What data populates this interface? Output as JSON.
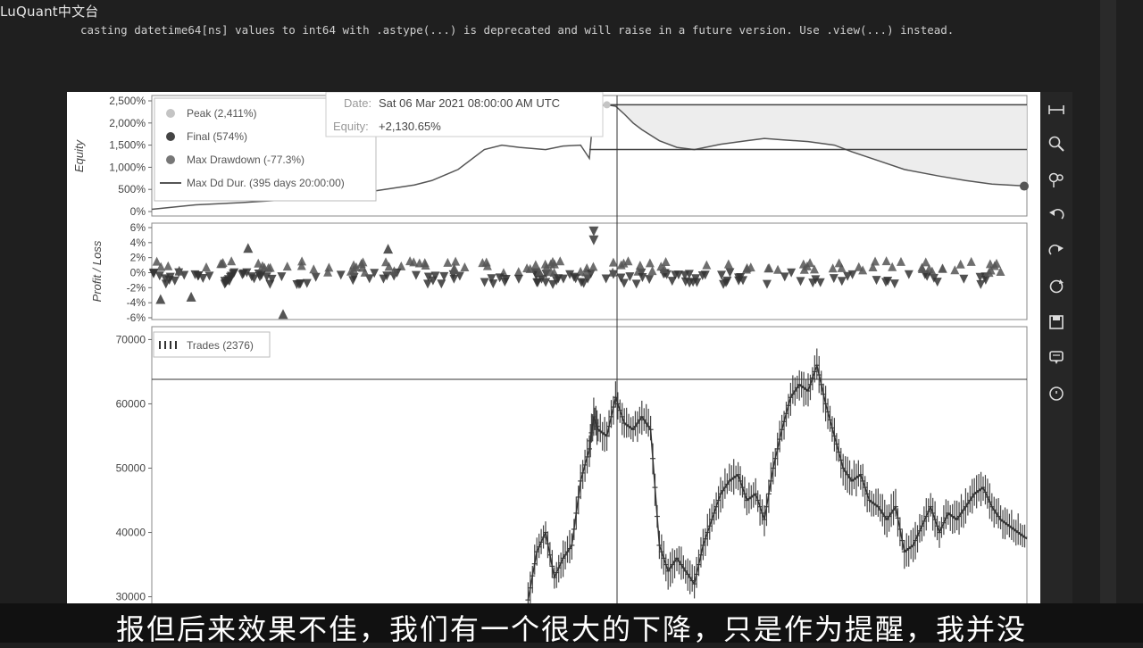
{
  "brand": "LuQuant中文台",
  "warning": "casting datetime64[ns] values to int64 with .astype(...) is deprecated and will raise in a future version. Use .view(...) instead.",
  "subtitle": "报但后来效果不佳，我们有一个很大的下降，只是作为提醒，我并没",
  "tooltip": {
    "date_label": "Date:",
    "date_value": "Sat 06 Mar 2021 08:00:00 AM UTC",
    "equity_label": "Equity:",
    "equity_value": "+2,130.65%"
  },
  "toolbar_icons": [
    "pan-icon",
    "box-zoom-icon",
    "wheel-zoom-icon",
    "undo-icon",
    "redo-icon",
    "reset-icon",
    "save-icon",
    "hover-icon",
    "crosshair-icon"
  ],
  "chart_data": [
    {
      "type": "line",
      "ylabel": "Equity",
      "ylim": [
        0,
        2500
      ],
      "yticks": [
        "0%",
        "500%",
        "1,000%",
        "1,500%",
        "2,000%",
        "2,500%"
      ],
      "ytick_values": [
        0,
        500,
        1000,
        1500,
        2000,
        2500
      ],
      "legend_position": "top-left",
      "legend": [
        {
          "name": "Peak (2,411%)",
          "marker": "circle",
          "color": "#c4c4c4"
        },
        {
          "name": "Final (574%)",
          "marker": "circle",
          "color": "#444444"
        },
        {
          "name": "Max Drawdown (-77.3%)",
          "marker": "circle",
          "color": "#777777"
        },
        {
          "name": "Max Dd Dur. (395 days 20:00:00)",
          "marker": "line",
          "color": "#555555"
        }
      ],
      "x": [
        0,
        0.05,
        0.1,
        0.15,
        0.2,
        0.25,
        0.3,
        0.32,
        0.35,
        0.38,
        0.4,
        0.42,
        0.45,
        0.47,
        0.49,
        0.5,
        0.505,
        0.51,
        0.515,
        0.52,
        0.53,
        0.54,
        0.55,
        0.56,
        0.58,
        0.6,
        0.62,
        0.65,
        0.68,
        0.7,
        0.72,
        0.75,
        0.78,
        0.8,
        0.83,
        0.86,
        0.9,
        0.93,
        0.96,
        1.0
      ],
      "values": [
        50,
        150,
        200,
        260,
        320,
        450,
        600,
        700,
        950,
        1400,
        1500,
        1450,
        1400,
        1480,
        1500,
        1200,
        2300,
        2350,
        2400,
        2411,
        2380,
        2200,
        2000,
        1850,
        1600,
        1450,
        1400,
        1520,
        1600,
        1650,
        1620,
        1580,
        1500,
        1350,
        1150,
        950,
        800,
        700,
        620,
        574
      ],
      "peak": {
        "x": 0.52,
        "y": 2411
      },
      "final": {
        "x": 1.0,
        "y": 574
      },
      "max_drawdown_pct": -77.3
    },
    {
      "type": "scatter",
      "ylabel": "Profit / Loss",
      "ylim": [
        -6,
        6
      ],
      "yticks": [
        "-6%",
        "-4%",
        "-2%",
        "0%",
        "2%",
        "4%",
        "6%"
      ],
      "ytick_values": [
        -6,
        -4,
        -2,
        0,
        2,
        4,
        6
      ],
      "highlights": [
        {
          "x": 0.505,
          "y": 5.5,
          "marker": "triangle-down"
        },
        {
          "x": 0.505,
          "y": 4.3,
          "marker": "triangle-down"
        },
        {
          "x": 0.01,
          "y": -3.5,
          "marker": "triangle-up"
        },
        {
          "x": 0.045,
          "y": -3.2,
          "marker": "triangle-up"
        },
        {
          "x": 0.15,
          "y": -5.5,
          "marker": "triangle-up"
        },
        {
          "x": 0.11,
          "y": 3.3,
          "marker": "triangle-up"
        },
        {
          "x": 0.27,
          "y": 3.2,
          "marker": "triangle-up"
        }
      ]
    },
    {
      "type": "line",
      "ylabel": "",
      "ylim": [
        28000,
        72000
      ],
      "yticks": [
        "30000",
        "40000",
        "50000",
        "60000",
        "70000"
      ],
      "ytick_values": [
        30000,
        40000,
        50000,
        60000,
        70000
      ],
      "legend": [
        {
          "name": "Trades (2376)"
        }
      ],
      "x": [
        0.43,
        0.44,
        0.45,
        0.46,
        0.47,
        0.48,
        0.49,
        0.5,
        0.505,
        0.51,
        0.52,
        0.53,
        0.54,
        0.55,
        0.56,
        0.57,
        0.58,
        0.59,
        0.6,
        0.61,
        0.62,
        0.63,
        0.64,
        0.65,
        0.66,
        0.67,
        0.68,
        0.69,
        0.7,
        0.71,
        0.72,
        0.73,
        0.74,
        0.75,
        0.76,
        0.77,
        0.78,
        0.79,
        0.8,
        0.81,
        0.82,
        0.83,
        0.84,
        0.85,
        0.86,
        0.87,
        0.88,
        0.89,
        0.9,
        0.91,
        0.92,
        0.93,
        0.94,
        0.95,
        0.96,
        0.97,
        0.98,
        0.99,
        1.0
      ],
      "values": [
        29500,
        37000,
        40000,
        33000,
        36000,
        38000,
        48000,
        53000,
        58000,
        56000,
        55000,
        61000,
        57000,
        56000,
        58000,
        56000,
        38000,
        34000,
        36000,
        34000,
        32000,
        38000,
        42000,
        46000,
        48000,
        49000,
        45000,
        46000,
        42000,
        50000,
        56000,
        61000,
        63000,
        62000,
        66000,
        60000,
        55000,
        50000,
        48000,
        49000,
        45000,
        44000,
        42000,
        44000,
        37000,
        38000,
        41000,
        44000,
        40000,
        43000,
        42000,
        44000,
        46000,
        47000,
        44000,
        42000,
        41000,
        40000,
        39000
      ]
    }
  ]
}
